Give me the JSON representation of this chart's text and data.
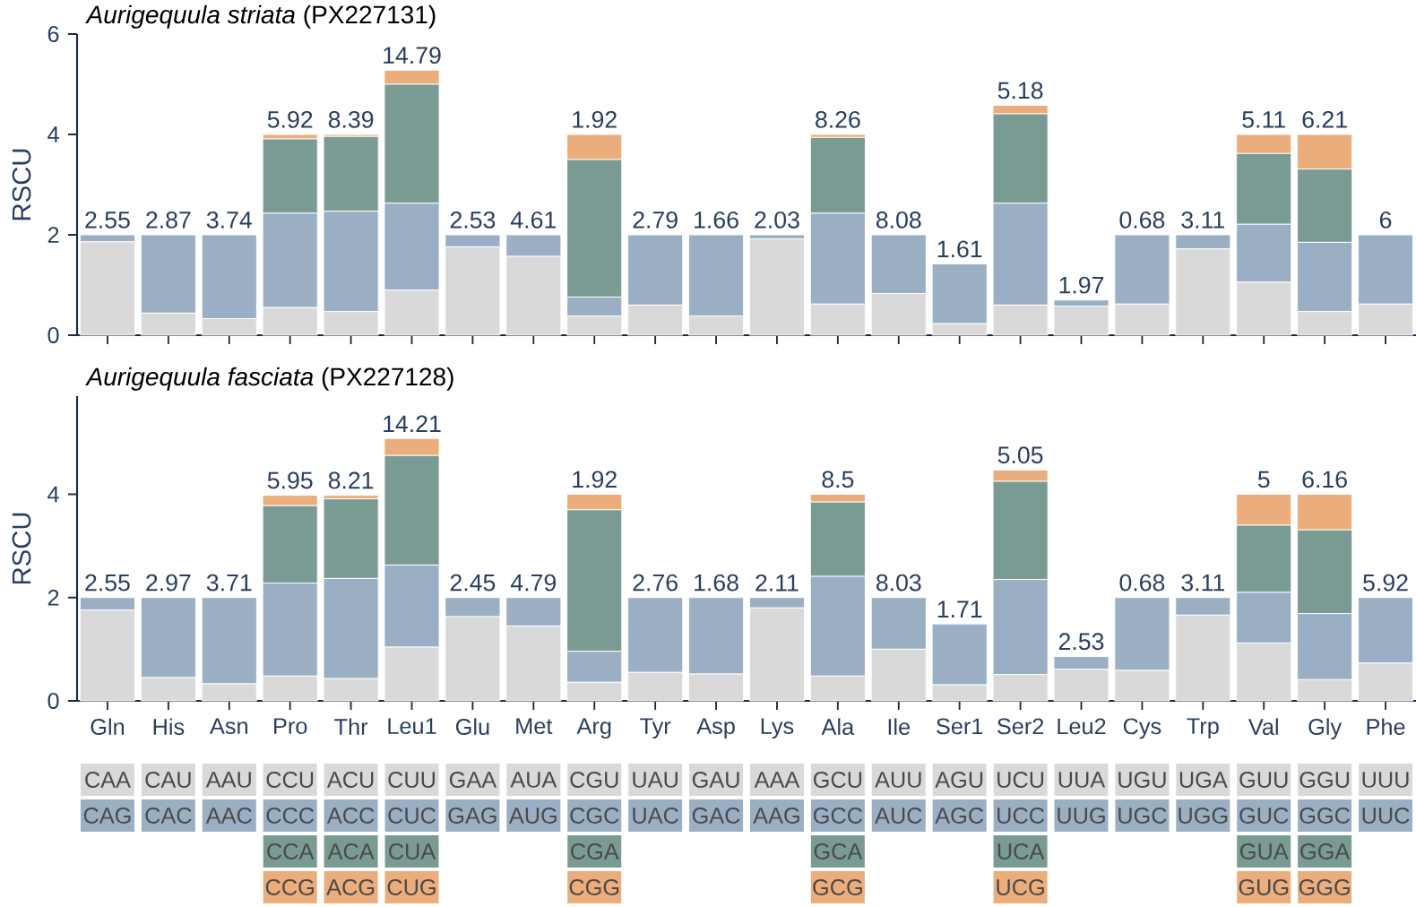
{
  "chart_data": [
    {
      "type": "bar",
      "stacked": true,
      "title": "*Aurigequula striata* (PX227131)",
      "ylabel": "RSCU",
      "ylim": [
        0,
        6
      ],
      "yticks": [
        0,
        2,
        4,
        6
      ],
      "tick_labels": "y",
      "categories": [
        "Gln",
        "His",
        "Asn",
        "Pro",
        "Thr",
        "Leu1",
        "Glu",
        "Met",
        "Arg",
        "Tyr",
        "Asp",
        "Lys",
        "Ala",
        "Ile",
        "Ser1",
        "Ser2",
        "Leu2",
        "Cys",
        "Trp",
        "Val",
        "Gly",
        "Phe"
      ],
      "series": [
        {
          "color": "#d9d9d9",
          "values": [
            1.86,
            0.44,
            0.33,
            0.55,
            0.47,
            0.9,
            1.76,
            1.57,
            0.38,
            0.6,
            0.38,
            1.92,
            0.62,
            0.83,
            0.23,
            0.6,
            0.58,
            0.62,
            1.72,
            1.06,
            0.47,
            0.62
          ]
        },
        {
          "color": "#9aafc4",
          "values": [
            0.14,
            1.56,
            1.67,
            1.88,
            2.0,
            1.73,
            0.24,
            0.43,
            0.38,
            1.4,
            1.62,
            0.08,
            1.81,
            1.17,
            1.19,
            2.03,
            0.12,
            1.38,
            0.28,
            1.15,
            1.38,
            1.38
          ]
        },
        {
          "color": "#7a9b93",
          "values": [
            null,
            null,
            null,
            1.48,
            1.49,
            2.37,
            null,
            null,
            2.74,
            null,
            null,
            null,
            1.51,
            null,
            null,
            1.78,
            null,
            null,
            null,
            1.41,
            1.46,
            null
          ]
        },
        {
          "color": "#ebad7b",
          "values": [
            null,
            null,
            null,
            0.09,
            0.04,
            0.28,
            null,
            null,
            0.5,
            null,
            null,
            null,
            0.06,
            null,
            null,
            0.17,
            null,
            null,
            null,
            0.38,
            0.69,
            null
          ]
        }
      ],
      "annotations": [
        {
          "text": "2.55",
          "x": "Gln",
          "y": 2
        },
        {
          "text": "2.87",
          "x": "His",
          "y": 2
        },
        {
          "text": "3.74",
          "x": "Asn",
          "y": 2
        },
        {
          "text": "5.92",
          "x": "Pro",
          "y": 4.0
        },
        {
          "text": "8.39",
          "x": "Thr",
          "y": 4.0
        },
        {
          "text": "14.79",
          "x": "Leu1",
          "y": 5.28
        },
        {
          "text": "2.53",
          "x": "Glu",
          "y": 2
        },
        {
          "text": "4.61",
          "x": "Met",
          "y": 2
        },
        {
          "text": "1.92",
          "x": "Arg",
          "y": 4.0
        },
        {
          "text": "2.79",
          "x": "Tyr",
          "y": 2
        },
        {
          "text": "1.66",
          "x": "Asp",
          "y": 2
        },
        {
          "text": "2.03",
          "x": "Lys",
          "y": 2
        },
        {
          "text": "8.26",
          "x": "Ala",
          "y": 4.0
        },
        {
          "text": "8.08",
          "x": "Ile",
          "y": 2
        },
        {
          "text": "1.61",
          "x": "Ser1",
          "y": 1.42
        },
        {
          "text": "5.18",
          "x": "Ser2",
          "y": 4.58
        },
        {
          "text": "1.97",
          "x": "Leu2",
          "y": 0.7
        },
        {
          "text": "0.68",
          "x": "Cys",
          "y": 2
        },
        {
          "text": "3.11",
          "x": "Trp",
          "y": 2
        },
        {
          "text": "5.11",
          "x": "Val",
          "y": 4.0
        },
        {
          "text": "6.21",
          "x": "Gly",
          "y": 4.0
        },
        {
          "text": "6",
          "x": "Phe",
          "y": 2
        }
      ]
    },
    {
      "type": "bar",
      "stacked": true,
      "title": "*Aurigequula fasciata* (PX227128)",
      "ylabel": "RSCU",
      "ylim": [
        0,
        5.9
      ],
      "yticks": [
        0,
        2,
        4
      ],
      "categories": [
        "Gln",
        "His",
        "Asn",
        "Pro",
        "Thr",
        "Leu1",
        "Glu",
        "Met",
        "Arg",
        "Tyr",
        "Asp",
        "Lys",
        "Ala",
        "Ile",
        "Ser1",
        "Ser2",
        "Leu2",
        "Cys",
        "Trp",
        "Val",
        "Gly",
        "Phe"
      ],
      "series": [
        {
          "color": "#d9d9d9",
          "values": [
            1.76,
            0.45,
            0.33,
            0.48,
            0.43,
            1.04,
            1.63,
            1.45,
            0.36,
            0.55,
            0.52,
            1.8,
            0.48,
            1.0,
            0.31,
            0.51,
            0.61,
            0.59,
            1.66,
            1.12,
            0.41,
            0.73
          ]
        },
        {
          "color": "#9aafc4",
          "values": [
            0.24,
            1.55,
            1.67,
            1.8,
            1.94,
            1.59,
            0.37,
            0.55,
            0.6,
            1.45,
            1.48,
            0.2,
            1.93,
            1.0,
            1.18,
            1.84,
            0.25,
            1.41,
            0.34,
            0.98,
            1.28,
            1.27
          ]
        },
        {
          "color": "#7a9b93",
          "values": [
            null,
            null,
            null,
            1.5,
            1.54,
            2.12,
            null,
            null,
            2.74,
            null,
            null,
            null,
            1.44,
            null,
            null,
            1.9,
            null,
            null,
            null,
            1.3,
            1.62,
            null
          ]
        },
        {
          "color": "#ebad7b",
          "values": [
            null,
            null,
            null,
            0.2,
            0.07,
            0.33,
            null,
            null,
            0.3,
            null,
            null,
            null,
            0.15,
            null,
            null,
            0.22,
            null,
            null,
            null,
            0.6,
            0.69,
            null
          ]
        }
      ],
      "annotations": [
        {
          "text": "2.55",
          "x": "Gln",
          "y": 2
        },
        {
          "text": "2.97",
          "x": "His",
          "y": 2
        },
        {
          "text": "3.71",
          "x": "Asn",
          "y": 2
        },
        {
          "text": "5.95",
          "x": "Pro",
          "y": 3.98
        },
        {
          "text": "8.21",
          "x": "Thr",
          "y": 3.98
        },
        {
          "text": "14.21",
          "x": "Leu1",
          "y": 5.08
        },
        {
          "text": "2.45",
          "x": "Glu",
          "y": 2
        },
        {
          "text": "4.79",
          "x": "Met",
          "y": 2
        },
        {
          "text": "1.92",
          "x": "Arg",
          "y": 4.0
        },
        {
          "text": "2.76",
          "x": "Tyr",
          "y": 2
        },
        {
          "text": "1.68",
          "x": "Asp",
          "y": 2
        },
        {
          "text": "2.11",
          "x": "Lys",
          "y": 2
        },
        {
          "text": "8.5",
          "x": "Ala",
          "y": 4.0
        },
        {
          "text": "8.03",
          "x": "Ile",
          "y": 2
        },
        {
          "text": "1.71",
          "x": "Ser1",
          "y": 1.49
        },
        {
          "text": "5.05",
          "x": "Ser2",
          "y": 4.47
        },
        {
          "text": "2.53",
          "x": "Leu2",
          "y": 0.86
        },
        {
          "text": "0.68",
          "x": "Cys",
          "y": 2
        },
        {
          "text": "3.11",
          "x": "Trp",
          "y": 2
        },
        {
          "text": "5",
          "x": "Val",
          "y": 4.0
        },
        {
          "text": "6.16",
          "x": "Gly",
          "y": 4.0
        },
        {
          "text": "5.92",
          "x": "Phe",
          "y": 2
        }
      ]
    },
    {
      "type": "other",
      "annotations": [
        "CAA",
        "CAG",
        "CAU",
        "CAC",
        "AAU",
        "AAC",
        "CCU",
        "CCC",
        "CCA",
        "CCG",
        "ACU",
        "ACC",
        "ACA",
        "ACG",
        "CUU",
        "CUC",
        "CUA",
        "CUG",
        "GAA",
        "GAG",
        "AUA",
        "AUG",
        "CGU",
        "CGC",
        "CGA",
        "CGG",
        "UAU",
        "UAC",
        "GAU",
        "GAC",
        "AAA",
        "AAG",
        "GCU",
        "GCC",
        "GCA",
        "GCG",
        "AUU",
        "AUC",
        "AGU",
        "AGC",
        "UCU",
        "UCC",
        "UCA",
        "UCG",
        "UUA",
        "UUG",
        "UGU",
        "UGC",
        "UGA",
        "UGG",
        "GUU",
        "GUC",
        "GUA",
        "GUG",
        "GGU",
        "GGC",
        "GGA",
        "GGG",
        "UUU",
        "UUC"
      ]
    }
  ]
}
